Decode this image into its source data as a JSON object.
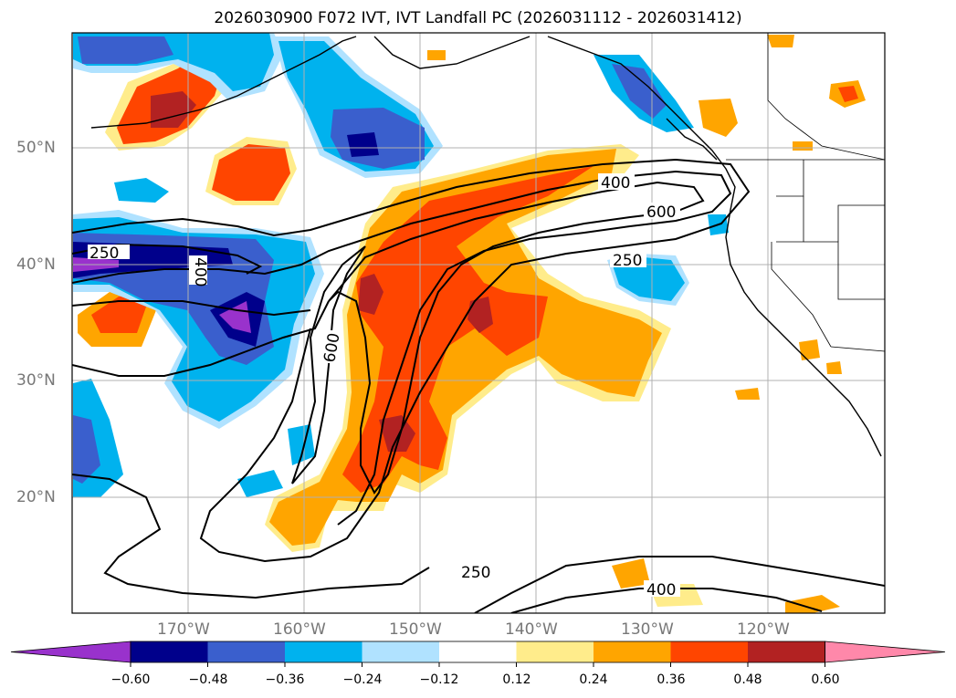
{
  "title": "2026030900 F072 IVT, IVT Landfall PC (2026031112 - 2026031412)",
  "map": {
    "lat_ticks": [
      "50°N",
      "40°N",
      "30°N",
      "20°N"
    ],
    "lon_ticks": [
      "170°W",
      "160°W",
      "150°W",
      "140°W",
      "130°W",
      "120°W"
    ],
    "contour_labels": [
      "400",
      "600",
      "250",
      "400",
      "600",
      "250",
      "250",
      "400"
    ]
  },
  "colorbar": {
    "ticks": [
      "−0.60",
      "−0.48",
      "−0.36",
      "−0.24",
      "−0.12",
      "0.12",
      "0.24",
      "0.36",
      "0.48",
      "0.60"
    ],
    "colors": [
      "#9932cc",
      "#00008b",
      "#3a5fcd",
      "#00b2ee",
      "#b0e2ff",
      "#ffffff",
      "#ffec8b",
      "#ffa500",
      "#ff4500",
      "#b22222",
      "#ff88aa"
    ]
  }
}
